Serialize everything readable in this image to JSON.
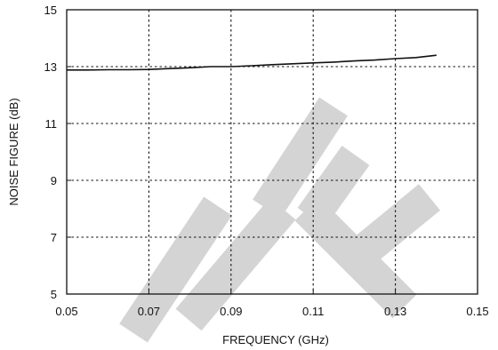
{
  "colors": {
    "line": "#111111",
    "grid": "#111111",
    "watermark": "#d4d4d4",
    "background": "#ffffff"
  },
  "chart_data": {
    "type": "line",
    "title": "",
    "xlabel": "FREQUENCY (GHz)",
    "ylabel": "NOISE FIGURE (dB)",
    "xlim": [
      0.05,
      0.15
    ],
    "ylim": [
      5,
      15
    ],
    "x_ticks": [
      "0.05",
      "0.07",
      "0.09",
      "0.11",
      "0.13",
      "0.15"
    ],
    "y_ticks": [
      "5",
      "7",
      "9",
      "11",
      "13",
      "15"
    ],
    "grid": true,
    "grid_style": "dotted",
    "legend": "none",
    "series": [
      {
        "x": [
          0.05,
          0.055,
          0.06,
          0.065,
          0.07,
          0.075,
          0.08,
          0.085,
          0.09,
          0.095,
          0.1,
          0.105,
          0.11,
          0.115,
          0.12,
          0.125,
          0.13,
          0.135,
          0.14
        ],
        "values": [
          12.88,
          12.88,
          12.89,
          12.89,
          12.9,
          12.93,
          12.96,
          13.0,
          13.0,
          13.03,
          13.07,
          13.1,
          13.13,
          13.16,
          13.2,
          13.23,
          13.28,
          13.32,
          13.4
        ]
      }
    ],
    "watermark": "LATE"
  }
}
